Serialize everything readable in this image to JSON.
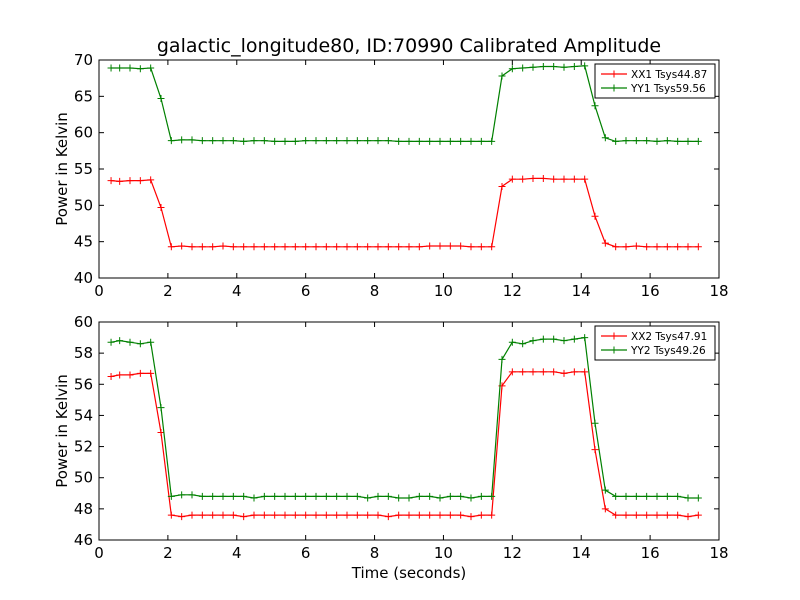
{
  "chart_data": [
    {
      "type": "line",
      "title": "galactic_longitude80, ID:70990 Calibrated Amplitude",
      "xlabel": "",
      "ylabel": "Power in Kelvin",
      "xlim": [
        0,
        18
      ],
      "ylim": [
        40,
        70
      ],
      "xticks": [
        0,
        2,
        4,
        6,
        8,
        10,
        12,
        14,
        16,
        18
      ],
      "yticks": [
        40,
        45,
        50,
        55,
        60,
        65,
        70
      ],
      "grid": false,
      "legend": "top-right",
      "x": [
        0.35,
        0.6,
        0.9,
        1.2,
        1.5,
        1.8,
        2.1,
        2.4,
        2.7,
        3.0,
        3.3,
        3.6,
        3.9,
        4.2,
        4.5,
        4.8,
        5.1,
        5.4,
        5.7,
        6.0,
        6.3,
        6.6,
        6.9,
        7.2,
        7.5,
        7.8,
        8.1,
        8.4,
        8.7,
        9.0,
        9.3,
        9.6,
        9.9,
        10.2,
        10.5,
        10.8,
        11.1,
        11.4,
        11.7,
        12.0,
        12.3,
        12.6,
        12.9,
        13.2,
        13.5,
        13.8,
        14.1,
        14.4,
        14.7,
        15.0,
        15.3,
        15.6,
        15.9,
        16.2,
        16.5,
        16.8,
        17.1,
        17.4
      ],
      "series": [
        {
          "name": "XX1 Tsys44.87",
          "color": "#ff0000",
          "values": [
            53.4,
            53.3,
            53.4,
            53.4,
            53.5,
            49.7,
            44.3,
            44.4,
            44.3,
            44.3,
            44.3,
            44.4,
            44.3,
            44.3,
            44.3,
            44.3,
            44.3,
            44.3,
            44.3,
            44.3,
            44.3,
            44.3,
            44.3,
            44.3,
            44.3,
            44.3,
            44.3,
            44.3,
            44.3,
            44.3,
            44.3,
            44.4,
            44.4,
            44.4,
            44.4,
            44.3,
            44.3,
            44.3,
            52.6,
            53.6,
            53.6,
            53.7,
            53.7,
            53.6,
            53.6,
            53.6,
            53.6,
            48.5,
            44.8,
            44.3,
            44.3,
            44.4,
            44.3,
            44.3,
            44.3,
            44.3,
            44.3,
            44.3
          ]
        },
        {
          "name": "YY1 Tsys59.56",
          "color": "#008000",
          "values": [
            68.9,
            68.9,
            68.9,
            68.8,
            68.9,
            64.7,
            58.9,
            59.0,
            59.0,
            58.9,
            58.9,
            58.9,
            58.9,
            58.8,
            58.9,
            58.9,
            58.8,
            58.8,
            58.8,
            58.9,
            58.9,
            58.9,
            58.9,
            58.9,
            58.9,
            58.9,
            58.9,
            58.9,
            58.8,
            58.8,
            58.8,
            58.8,
            58.8,
            58.8,
            58.8,
            58.8,
            58.8,
            58.8,
            67.8,
            68.8,
            68.9,
            69.0,
            69.1,
            69.1,
            69.0,
            69.1,
            69.2,
            63.7,
            59.3,
            58.8,
            58.9,
            58.9,
            58.9,
            58.8,
            58.9,
            58.8,
            58.8,
            58.8
          ]
        }
      ]
    },
    {
      "type": "line",
      "title": "",
      "xlabel": "Time (seconds)",
      "ylabel": "Power in Kelvin",
      "xlim": [
        0,
        18
      ],
      "ylim": [
        46,
        60
      ],
      "xticks": [
        0,
        2,
        4,
        6,
        8,
        10,
        12,
        14,
        16,
        18
      ],
      "yticks": [
        46,
        48,
        50,
        52,
        54,
        56,
        58,
        60
      ],
      "grid": false,
      "legend": "top-right",
      "x": [
        0.35,
        0.6,
        0.9,
        1.2,
        1.5,
        1.8,
        2.1,
        2.4,
        2.7,
        3.0,
        3.3,
        3.6,
        3.9,
        4.2,
        4.5,
        4.8,
        5.1,
        5.4,
        5.7,
        6.0,
        6.3,
        6.6,
        6.9,
        7.2,
        7.5,
        7.8,
        8.1,
        8.4,
        8.7,
        9.0,
        9.3,
        9.6,
        9.9,
        10.2,
        10.5,
        10.8,
        11.1,
        11.4,
        11.7,
        12.0,
        12.3,
        12.6,
        12.9,
        13.2,
        13.5,
        13.8,
        14.1,
        14.4,
        14.7,
        15.0,
        15.3,
        15.6,
        15.9,
        16.2,
        16.5,
        16.8,
        17.1,
        17.4
      ],
      "series": [
        {
          "name": "XX2 Tsys47.91",
          "color": "#ff0000",
          "values": [
            56.5,
            56.6,
            56.6,
            56.7,
            56.7,
            52.9,
            47.6,
            47.5,
            47.6,
            47.6,
            47.6,
            47.6,
            47.6,
            47.5,
            47.6,
            47.6,
            47.6,
            47.6,
            47.6,
            47.6,
            47.6,
            47.6,
            47.6,
            47.6,
            47.6,
            47.6,
            47.6,
            47.5,
            47.6,
            47.6,
            47.6,
            47.6,
            47.6,
            47.6,
            47.6,
            47.5,
            47.6,
            47.6,
            55.9,
            56.8,
            56.8,
            56.8,
            56.8,
            56.8,
            56.7,
            56.8,
            56.8,
            51.8,
            48.0,
            47.6,
            47.6,
            47.6,
            47.6,
            47.6,
            47.6,
            47.6,
            47.5,
            47.6
          ]
        },
        {
          "name": "YY2 Tsys49.26",
          "color": "#008000",
          "values": [
            58.7,
            58.8,
            58.7,
            58.6,
            58.7,
            54.5,
            48.8,
            48.9,
            48.9,
            48.8,
            48.8,
            48.8,
            48.8,
            48.8,
            48.7,
            48.8,
            48.8,
            48.8,
            48.8,
            48.8,
            48.8,
            48.8,
            48.8,
            48.8,
            48.8,
            48.7,
            48.8,
            48.8,
            48.7,
            48.7,
            48.8,
            48.8,
            48.7,
            48.8,
            48.8,
            48.7,
            48.8,
            48.8,
            57.6,
            58.7,
            58.6,
            58.8,
            58.9,
            58.9,
            58.8,
            58.9,
            59.0,
            53.5,
            49.2,
            48.8,
            48.8,
            48.8,
            48.8,
            48.8,
            48.8,
            48.8,
            48.7,
            48.7
          ]
        }
      ]
    }
  ]
}
